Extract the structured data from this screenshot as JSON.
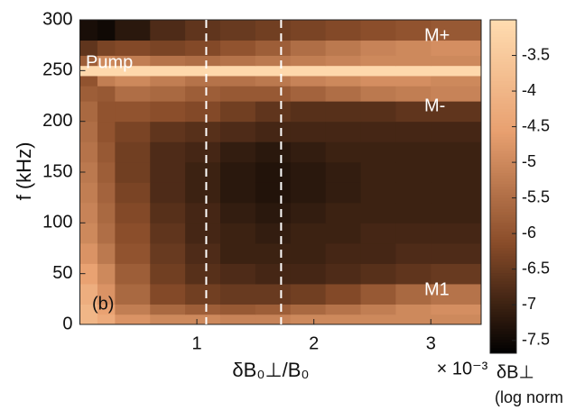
{
  "chart_data": {
    "type": "heatmap",
    "y_label": "f (kHz)",
    "x_label": "δB₀⊥/B₀",
    "x_multiplier": "× 10⁻³",
    "colorbar_label": "δB⊥",
    "colorbar_sublabel": "(log norm",
    "annotations": [
      "Pump",
      "M+",
      "M-",
      "M1",
      "(b)"
    ],
    "xlim": [
      0,
      3.43
    ],
    "xticks": [
      1,
      2,
      3
    ],
    "ylim": [
      0,
      300
    ],
    "yticks": [
      0,
      50,
      100,
      150,
      200,
      250,
      300
    ],
    "clim": [
      -7.68,
      -3.0
    ],
    "cticks": [
      -3.5,
      -4,
      -4.5,
      -5,
      -5.5,
      -6,
      -6.5,
      -7,
      -7.5
    ],
    "vlines": [
      1.08,
      1.72
    ],
    "colormap": [
      "#000000",
      "#8a4d2a",
      "#e8a070",
      "#ffdcb0"
    ],
    "x_bins": [
      0,
      0.15,
      0.3,
      0.6,
      0.9,
      1.2,
      1.5,
      1.8,
      2.1,
      2.4,
      2.7,
      3.0,
      3.43
    ],
    "y_bins": [
      0,
      10,
      20,
      40,
      60,
      80,
      100,
      120,
      140,
      160,
      180,
      200,
      220,
      235,
      245,
      255,
      265,
      280,
      300
    ],
    "values": [
      [
        -4.0,
        -4.3,
        -4.8,
        -5.0,
        -5.0,
        -5.1,
        -5.1,
        -5.0,
        -5.0,
        -5.0,
        -5.0,
        -5.0
      ],
      [
        -4.0,
        -4.5,
        -5.2,
        -5.6,
        -5.8,
        -5.9,
        -5.8,
        -5.6,
        -5.4,
        -5.2,
        -5.0,
        -4.9
      ],
      [
        -4.2,
        -4.8,
        -5.6,
        -6.2,
        -6.4,
        -6.5,
        -6.5,
        -6.4,
        -6.2,
        -5.9,
        -5.6,
        -5.4
      ],
      [
        -4.5,
        -5.0,
        -5.8,
        -6.4,
        -6.7,
        -6.8,
        -6.9,
        -6.9,
        -6.8,
        -6.7,
        -6.6,
        -6.5
      ],
      [
        -4.8,
        -5.3,
        -6.0,
        -6.5,
        -6.8,
        -7.0,
        -7.0,
        -7.0,
        -6.9,
        -6.9,
        -6.8,
        -6.8
      ],
      [
        -5.0,
        -5.5,
        -6.1,
        -6.6,
        -6.9,
        -7.0,
        -7.1,
        -7.0,
        -7.0,
        -6.9,
        -6.9,
        -6.9
      ],
      [
        -5.1,
        -5.6,
        -6.2,
        -6.7,
        -6.9,
        -7.1,
        -7.2,
        -7.1,
        -7.0,
        -7.0,
        -7.0,
        -7.0
      ],
      [
        -5.2,
        -5.7,
        -6.3,
        -6.8,
        -7.0,
        -7.2,
        -7.3,
        -7.2,
        -7.1,
        -7.0,
        -7.0,
        -7.0
      ],
      [
        -5.3,
        -5.8,
        -6.4,
        -6.8,
        -7.0,
        -7.2,
        -7.3,
        -7.2,
        -7.1,
        -7.0,
        -7.0,
        -7.0
      ],
      [
        -5.4,
        -5.9,
        -6.4,
        -6.8,
        -6.9,
        -7.1,
        -7.2,
        -7.1,
        -7.0,
        -7.0,
        -7.0,
        -7.0
      ],
      [
        -5.5,
        -6.0,
        -6.3,
        -6.6,
        -6.7,
        -6.8,
        -6.9,
        -6.9,
        -6.9,
        -6.9,
        -6.9,
        -6.9
      ],
      [
        -5.6,
        -6.0,
        -6.0,
        -6.1,
        -6.2,
        -6.4,
        -6.6,
        -6.7,
        -6.7,
        -6.7,
        -6.6,
        -6.6
      ],
      [
        -5.8,
        -5.9,
        -5.5,
        -5.6,
        -5.8,
        -5.9,
        -5.9,
        -5.7,
        -5.5,
        -5.3,
        -5.2,
        -5.1
      ],
      [
        -6.0,
        -5.2,
        -5.0,
        -5.2,
        -5.4,
        -5.4,
        -5.3,
        -5.1,
        -5.0,
        -4.9,
        -4.9,
        -5.0
      ],
      [
        -3.1,
        -3.1,
        -3.1,
        -3.1,
        -3.1,
        -3.1,
        -3.1,
        -3.1,
        -3.1,
        -3.1,
        -3.1,
        -3.1
      ],
      [
        -5.8,
        -5.0,
        -5.2,
        -5.4,
        -5.5,
        -5.4,
        -5.3,
        -5.2,
        -5.1,
        -5.0,
        -5.0,
        -5.0
      ],
      [
        -6.6,
        -6.3,
        -6.2,
        -6.3,
        -6.2,
        -6.0,
        -5.8,
        -5.5,
        -5.3,
        -5.1,
        -5.0,
        -4.9
      ],
      [
        -7.4,
        -7.5,
        -7.2,
        -6.8,
        -6.6,
        -6.5,
        -6.4,
        -6.3,
        -6.2,
        -6.1,
        -6.0,
        -5.9
      ]
    ]
  }
}
